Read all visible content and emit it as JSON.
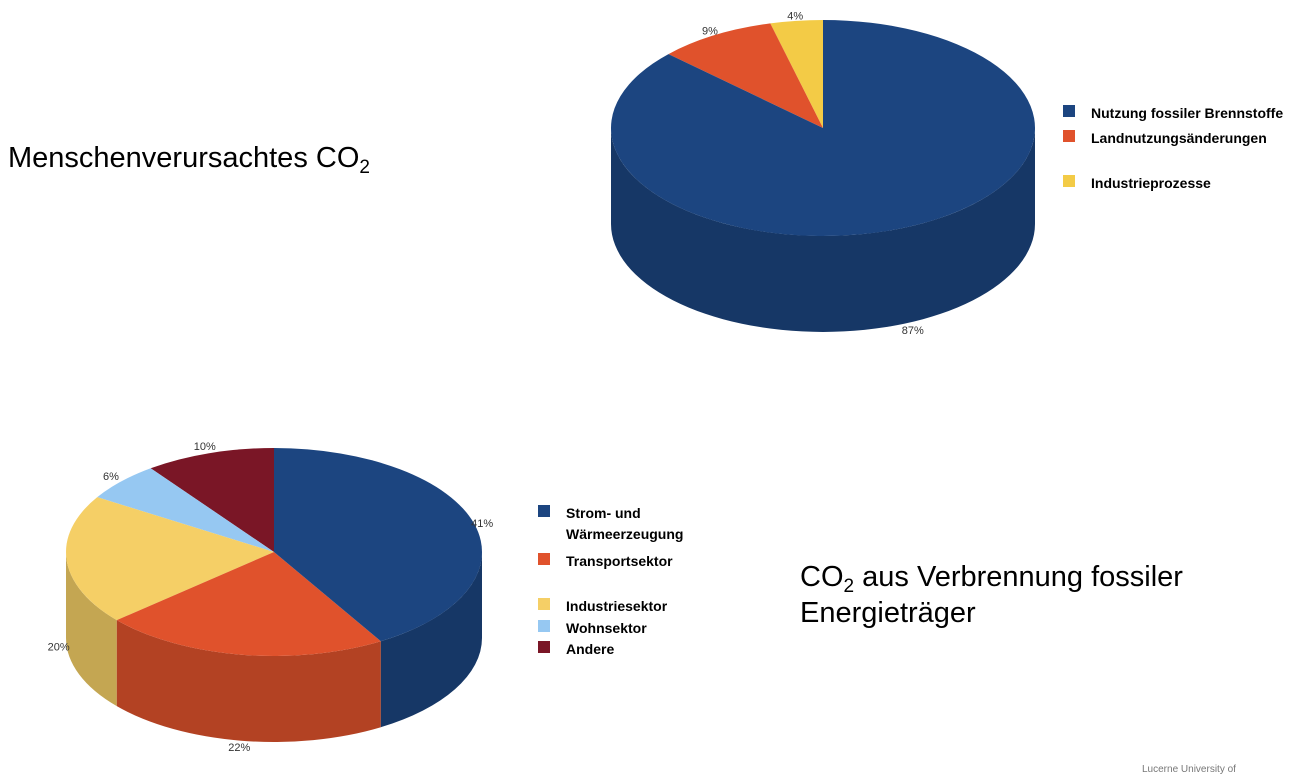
{
  "slide": {
    "title1_main": "Menschenverursachtes CO",
    "title1_sub": "2",
    "title2_prefix": "CO",
    "title2_sub": "2",
    "title2_rest": " aus Verbrennung fossiler",
    "title2_line2": "Energieträger",
    "footer": "Lucerne University of"
  },
  "chart_data": [
    {
      "type": "pie",
      "style": "3d",
      "categories": [
        "Nutzung fossiler Brennstoffe",
        "Landnutzungsänderungen",
        "Industrieprozesse"
      ],
      "values": [
        87,
        9,
        4
      ],
      "data_labels": [
        "87%",
        "9%",
        "4%"
      ],
      "colors": [
        "#1c4580",
        "#e0522c",
        "#f3cb46"
      ],
      "legend_position": "right"
    },
    {
      "type": "pie",
      "style": "3d",
      "categories": [
        "Strom- und Wärmeerzeugung",
        "Transportsektor",
        "Industriesektor",
        "Wohnsektor",
        "Andere"
      ],
      "values": [
        41,
        22,
        20,
        6,
        10
      ],
      "data_labels": [
        "41%",
        "22%",
        "20%",
        "6%",
        "10%"
      ],
      "colors": [
        "#1c4580",
        "#e0522c",
        "#f5cf66",
        "#96c8f2",
        "#7a1626"
      ],
      "legend_position": "right"
    }
  ]
}
